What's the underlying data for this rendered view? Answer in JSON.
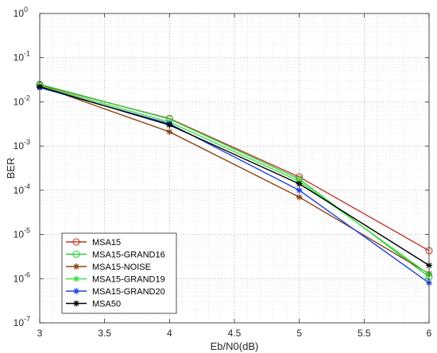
{
  "chart_data": {
    "type": "line",
    "title": "",
    "xlabel": "Eb/N0(dB)",
    "ylabel": "BER",
    "x_scale": "linear",
    "y_scale": "log",
    "xlim": [
      3,
      6
    ],
    "ylim": [
      1e-07,
      1
    ],
    "x_ticks": [
      3,
      3.5,
      4,
      4.5,
      5,
      5.5,
      6
    ],
    "x_tick_labels": [
      "3",
      "3.5",
      "4",
      "4.5",
      "5",
      "5.5",
      "6"
    ],
    "y_ticks": [
      1e-07,
      1e-06,
      1e-05,
      0.0001,
      0.001,
      0.01,
      0.1,
      1
    ],
    "y_tick_bases": [
      "10",
      "10",
      "10",
      "10",
      "10",
      "10",
      "10",
      "10"
    ],
    "y_tick_exponents": [
      "-7",
      "-6",
      "-5",
      "-4",
      "-3",
      "-2",
      "-1",
      "0"
    ],
    "grid": true,
    "minor_grid": true,
    "legend_position": "bottom-left",
    "series": [
      {
        "name": "MSA15",
        "color": "#c0392b",
        "marker": "circle",
        "x": [
          3,
          4,
          5,
          6
        ],
        "y": [
          0.024,
          0.0042,
          0.0002,
          4.3e-06
        ]
      },
      {
        "name": "MSA15-GRAND16",
        "color": "#2ecc40",
        "marker": "circle",
        "x": [
          3,
          4,
          5,
          6
        ],
        "y": [
          0.025,
          0.0041,
          0.00018,
          1.1e-06
        ]
      },
      {
        "name": "MSA15-NOISE",
        "color": "#8b4513",
        "marker": "star",
        "x": [
          3,
          4,
          5,
          6
        ],
        "y": [
          0.023,
          0.0021,
          7e-05,
          1.3e-06
        ]
      },
      {
        "name": "MSA15-GRAND19",
        "color": "#44dd44",
        "marker": "star",
        "x": [
          3,
          4,
          5,
          6
        ],
        "y": [
          0.023,
          0.0035,
          0.00016,
          1.25e-06
        ]
      },
      {
        "name": "MSA15-GRAND20",
        "color": "#1f3fe0",
        "marker": "star",
        "x": [
          3,
          4,
          5,
          6
        ],
        "y": [
          0.021,
          0.0032,
          0.0001,
          8e-07
        ]
      },
      {
        "name": "MSA50",
        "color": "#000000",
        "marker": "star",
        "x": [
          3,
          4,
          5,
          6
        ],
        "y": [
          0.022,
          0.003,
          0.00014,
          2e-06
        ]
      }
    ]
  }
}
